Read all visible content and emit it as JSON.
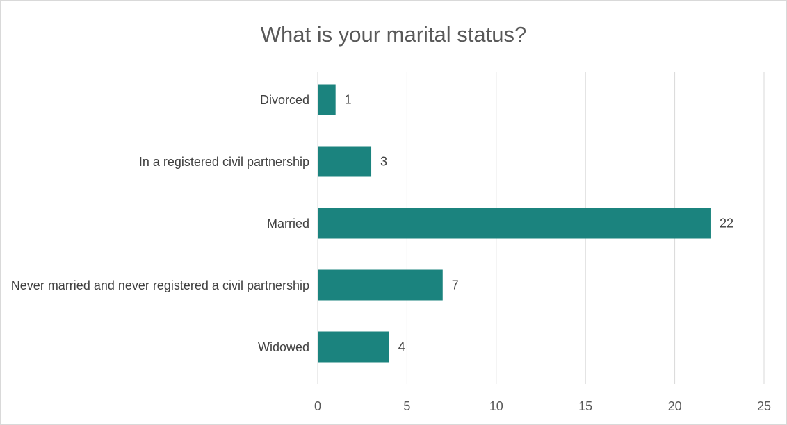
{
  "chart_data": {
    "type": "bar",
    "orientation": "horizontal",
    "title": "What is your marital status?",
    "categories": [
      "Divorced",
      "In a registered civil partnership",
      "Married",
      "Never married and never registered a civil partnership",
      "Widowed"
    ],
    "values": [
      1,
      3,
      22,
      7,
      4
    ],
    "color": "#1b837e",
    "xlim": [
      0,
      25
    ],
    "xticks": [
      0,
      5,
      10,
      15,
      20,
      25
    ],
    "grid": true
  }
}
